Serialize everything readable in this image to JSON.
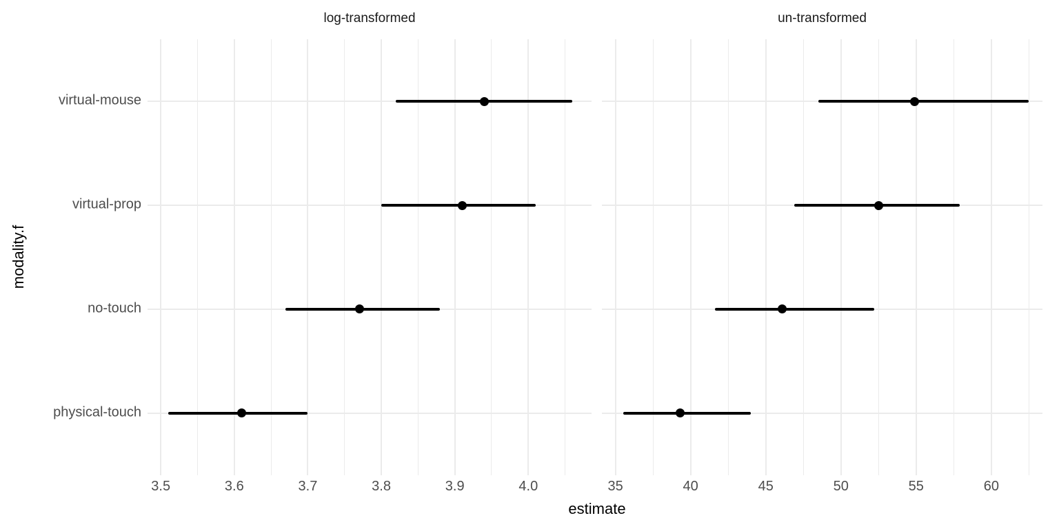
{
  "chart_data": {
    "type": "scatter",
    "subtype": "pointrange-dot-whisker",
    "title": "",
    "xlabel": "estimate",
    "ylabel": "modality.f",
    "grid": "on",
    "legend": "none",
    "categories": [
      "virtual-mouse",
      "virtual-prop",
      "no-touch",
      "physical-touch"
    ],
    "colors": {
      "point": "#000000",
      "interval_line": "#000000",
      "grid": "#ebebeb",
      "axis_text": "#4d4d4d",
      "strip_text": "#1a1a1a",
      "axis_title": "#000000",
      "background": "#ffffff"
    },
    "facets": [
      {
        "label": "log-transformed",
        "xlim": [
          3.482,
          4.086
        ],
        "major_ticks": [
          3.5,
          3.6,
          3.7,
          3.8,
          3.9,
          4.0
        ],
        "tick_labels": [
          "3.5",
          "3.6",
          "3.7",
          "3.8",
          "3.9",
          "4.0"
        ],
        "minor_ticks": [
          3.55,
          3.65,
          3.75,
          3.85,
          3.95,
          4.05
        ],
        "series": [
          {
            "category": "virtual-mouse",
            "estimate": 3.94,
            "lo": 3.82,
            "hi": 4.06
          },
          {
            "category": "virtual-prop",
            "estimate": 3.91,
            "lo": 3.8,
            "hi": 4.01
          },
          {
            "category": "no-touch",
            "estimate": 3.77,
            "lo": 3.67,
            "hi": 3.88
          },
          {
            "category": "physical-touch",
            "estimate": 3.61,
            "lo": 3.51,
            "hi": 3.7
          }
        ]
      },
      {
        "label": "un-transformed",
        "xlim": [
          34.1,
          63.4
        ],
        "major_ticks": [
          35,
          40,
          45,
          50,
          55,
          60
        ],
        "tick_labels": [
          "35",
          "40",
          "45",
          "50",
          "55",
          "60"
        ],
        "minor_ticks": [
          37.5,
          42.5,
          47.5,
          52.5,
          57.5,
          62.5
        ],
        "series": [
          {
            "category": "virtual-mouse",
            "estimate": 54.9,
            "lo": 48.5,
            "hi": 62.5
          },
          {
            "category": "virtual-prop",
            "estimate": 52.5,
            "lo": 46.9,
            "hi": 57.9
          },
          {
            "category": "no-touch",
            "estimate": 46.1,
            "lo": 41.6,
            "hi": 52.2
          },
          {
            "category": "physical-touch",
            "estimate": 39.3,
            "lo": 35.5,
            "hi": 44.0
          }
        ]
      }
    ]
  }
}
